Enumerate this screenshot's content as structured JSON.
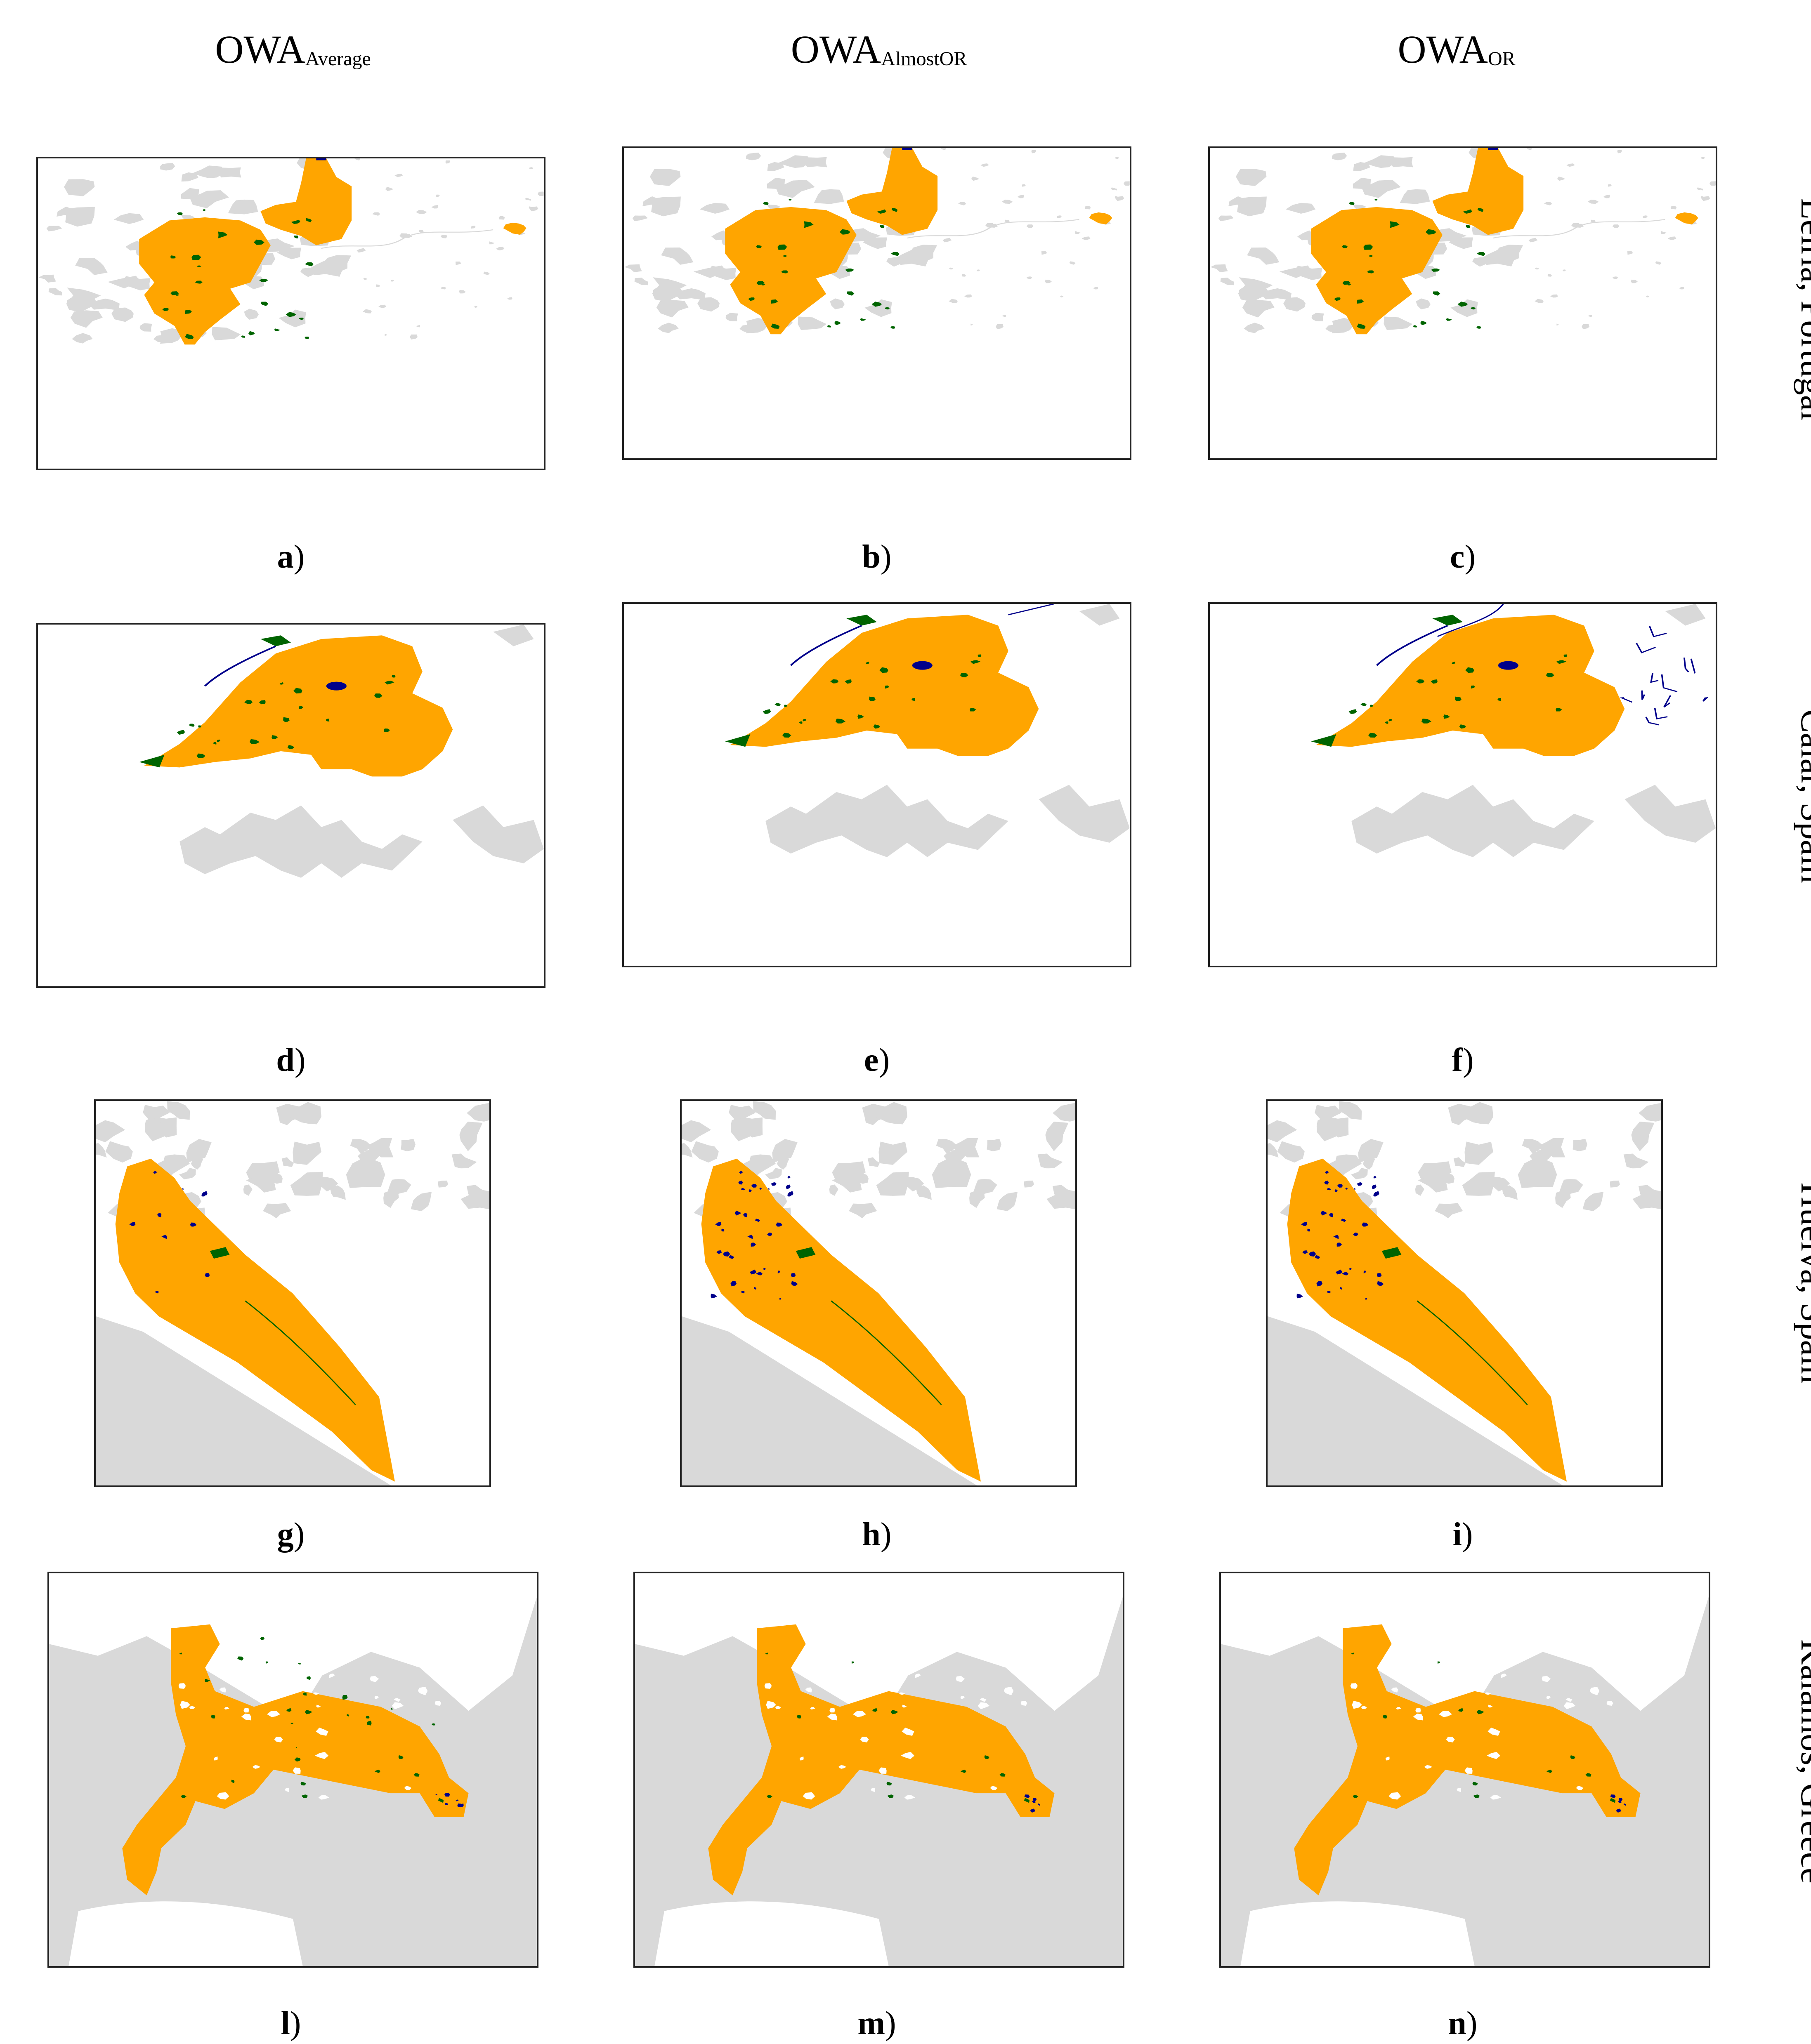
{
  "columns": [
    {
      "main": "OWA",
      "sub": "Average"
    },
    {
      "main": "OWA",
      "sub": "AlmostOR"
    },
    {
      "main": "OWA",
      "sub": "OR"
    }
  ],
  "rows": [
    {
      "label": "Leiria, Portugal",
      "captions": [
        "a",
        "b",
        "c"
      ],
      "map_type": "leiria"
    },
    {
      "label": "Calar, Spain",
      "captions": [
        "d",
        "e",
        "f"
      ],
      "map_type": "calar"
    },
    {
      "label": "Huelva, Spain",
      "captions": [
        "g",
        "h",
        "i"
      ],
      "map_type": "huelva"
    },
    {
      "label": "Kalamos, Greece",
      "captions": [
        "l",
        "m",
        "n"
      ],
      "map_type": "kalamos"
    }
  ],
  "colors": {
    "burned": "#ffa500",
    "omission": "#006400",
    "commission": "#00008b",
    "background": "#d9d9d9",
    "frame": "#222222"
  }
}
